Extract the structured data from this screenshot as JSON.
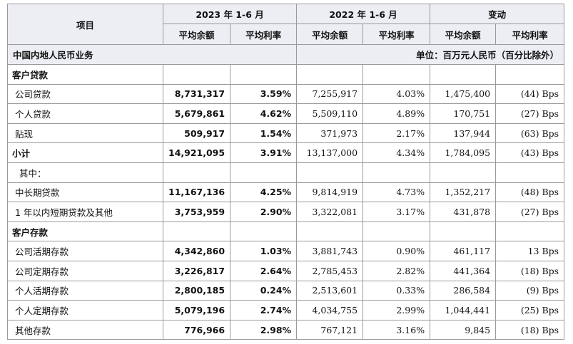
{
  "header": {
    "item": "项目",
    "groups": [
      "2023 年 1-6 月",
      "2022 年 1-6 月",
      "变动"
    ],
    "subheaders": [
      "平均余额",
      "平均利率",
      "平均余额",
      "平均利率",
      "平均余额",
      "平均利率"
    ]
  },
  "section": {
    "title": "中国内地人民币业务",
    "unit": "单位：百万元人民币（百分比除外）"
  },
  "table": {
    "rows": [
      {
        "label": "客户贷款"
      },
      {
        "label": "公司贷款",
        "cells": [
          "8,731,317",
          "3.59%",
          "7,255,917",
          "4.03%",
          "1,475,400",
          "(44) Bps"
        ]
      },
      {
        "label": "个人贷款",
        "cells": [
          "5,679,861",
          "4.62%",
          "5,509,110",
          "4.89%",
          "170,751",
          "(27) Bps"
        ]
      },
      {
        "label": "贴现",
        "cells": [
          "509,917",
          "1.54%",
          "371,973",
          "2.17%",
          "137,944",
          "(63) Bps"
        ]
      },
      {
        "label": "小计",
        "cells": [
          "14,921,095",
          "3.91%",
          "13,137,000",
          "4.34%",
          "1,784,095",
          "(43) Bps"
        ]
      },
      {
        "label": "其中："
      },
      {
        "label": "中长期贷款",
        "cells": [
          "11,167,136",
          "4.25%",
          "9,814,919",
          "4.73%",
          "1,352,217",
          "(48) Bps"
        ]
      },
      {
        "label": "1 年以内短期贷款及其他",
        "cells": [
          "3,753,959",
          "2.90%",
          "3,322,081",
          "3.17%",
          "431,878",
          "(27) Bps"
        ]
      },
      {
        "label": "客户存款"
      },
      {
        "label": "公司活期存款",
        "cells": [
          "4,342,860",
          "1.03%",
          "3,881,743",
          "0.90%",
          "461,117",
          "13 Bps"
        ]
      },
      {
        "label": "公司定期存款",
        "cells": [
          "3,226,817",
          "2.64%",
          "2,785,453",
          "2.82%",
          "441,364",
          "(18) Bps"
        ]
      },
      {
        "label": "个人活期存款",
        "cells": [
          "2,800,185",
          "0.24%",
          "2,513,601",
          "0.33%",
          "286,584",
          "(9) Bps"
        ]
      },
      {
        "label": "个人定期存款",
        "cells": [
          "5,079,196",
          "2.74%",
          "4,034,755",
          "2.99%",
          "1,044,441",
          "(25) Bps"
        ]
      },
      {
        "label": "其他存款",
        "cells": [
          "776,966",
          "2.98%",
          "767,121",
          "3.16%",
          "9,845",
          "(18) Bps"
        ]
      }
    ]
  }
}
